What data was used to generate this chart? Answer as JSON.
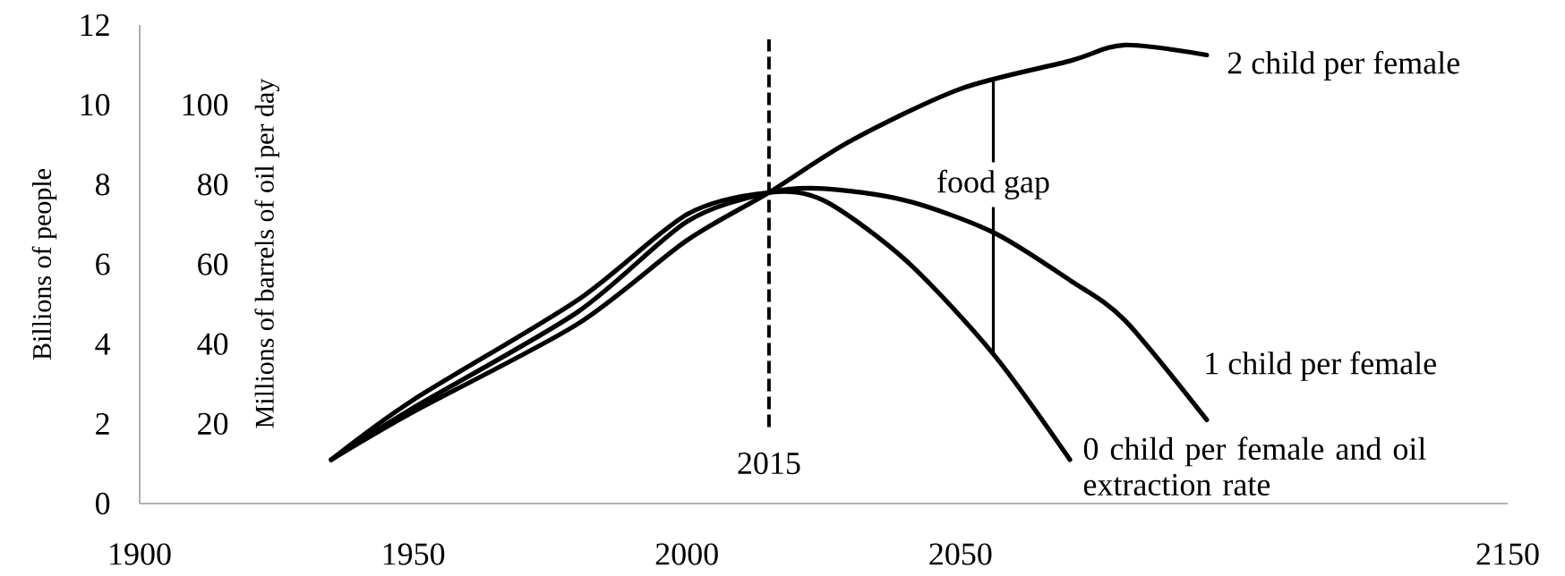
{
  "chart_data": {
    "type": "line",
    "xlabel": null,
    "ylabel": "Billions of people",
    "y2label": "Millions of barrels of oil per day",
    "series": [
      {
        "name": "2 child per female",
        "color": "#000000",
        "x": [
          1935,
          1950,
          1980,
          2000,
          2015,
          2030,
          2050,
          2070,
          2080,
          2095
        ],
        "values": [
          1.1,
          2.3,
          4.5,
          6.6,
          7.8,
          9.1,
          10.4,
          11.1,
          11.5,
          11.25
        ]
      },
      {
        "name": "1 child per female",
        "color": "#000000",
        "x": [
          1935,
          1950,
          1980,
          2000,
          2015,
          2025,
          2040,
          2056,
          2070,
          2080,
          2095
        ],
        "values": [
          1.1,
          2.4,
          4.8,
          7.07,
          7.8,
          7.9,
          7.6,
          6.8,
          5.6,
          4.6,
          2.1
        ]
      },
      {
        "name": "0 child per female and oil extraction rate",
        "color": "#000000",
        "x": [
          1935,
          1950,
          1980,
          2000,
          2015,
          2025,
          2040,
          2056,
          2070
        ],
        "values": [
          1.1,
          2.6,
          5.1,
          7.25,
          7.8,
          7.6,
          6.1,
          3.75,
          1.1
        ]
      }
    ],
    "xlim": [
      1900,
      2150
    ],
    "xticks": [
      1900,
      1950,
      2000,
      2050,
      2150
    ],
    "ylim": [
      0,
      12
    ],
    "yticks": [
      0,
      2,
      4,
      6,
      8,
      10,
      12
    ],
    "y2lim": [
      0,
      120
    ],
    "y2ticks": [
      20,
      40,
      60,
      80,
      100
    ],
    "ref_lines": [
      {
        "axis": "x",
        "value": 2015,
        "label": "2015",
        "line_style": "dashed",
        "color": "#000000"
      }
    ],
    "annotations": [
      {
        "text": "food gap",
        "x": 2056,
        "y": 10.6
      }
    ],
    "grid": false,
    "line_style": "solid",
    "marker": "none"
  }
}
